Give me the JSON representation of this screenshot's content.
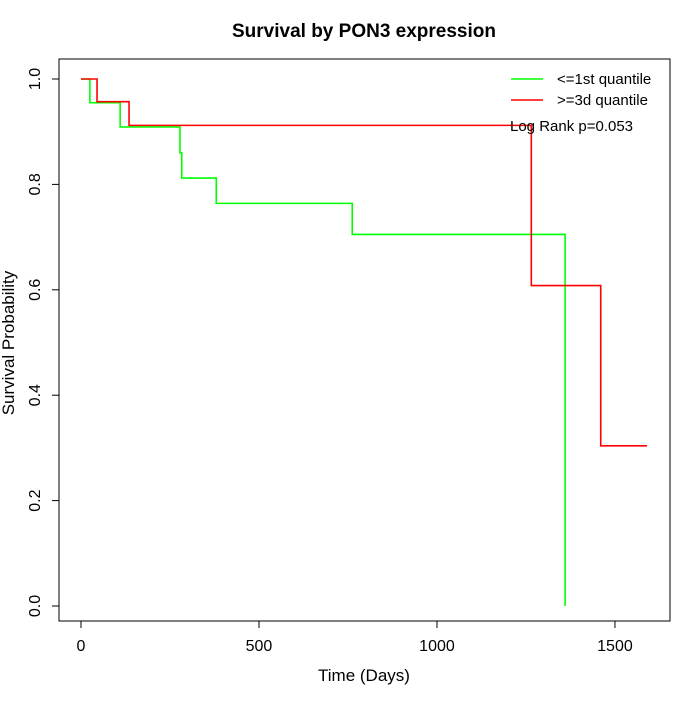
{
  "chart_data": {
    "type": "line",
    "title": "Survival by PON3 expression",
    "xlabel": "Time (Days)",
    "ylabel": "Survival Probability",
    "xlim": [
      0,
      1650
    ],
    "ylim": [
      0,
      1.0
    ],
    "x_ticks": [
      0,
      500,
      1000,
      1500
    ],
    "y_ticks": [
      0.0,
      0.2,
      0.4,
      0.6,
      0.8,
      1.0
    ],
    "x_tick_labels": [
      "0",
      "500",
      "1000",
      "1500"
    ],
    "y_tick_labels": [
      "0.0",
      "0.2",
      "0.4",
      "0.6",
      "0.8",
      "1.0"
    ],
    "grid": false,
    "legend_position": "top-right",
    "annotation": "Log Rank p=0.053",
    "series": [
      {
        "name": "<=1st quantile",
        "color": "#00ff00",
        "step": true,
        "x": [
          0,
          25,
          105,
          110,
          278,
          283,
          380,
          762,
          1360,
          1360
        ],
        "y": [
          1.0,
          0.955,
          0.955,
          0.909,
          0.86,
          0.812,
          0.764,
          0.705,
          0.47,
          0.0
        ]
      },
      {
        "name": ">=3d quantile",
        "color": "#ff0000",
        "step": true,
        "x": [
          0,
          45,
          135,
          1265,
          1460,
          1590
        ],
        "y": [
          1.0,
          0.957,
          0.912,
          0.608,
          0.304,
          0.304
        ]
      }
    ]
  }
}
